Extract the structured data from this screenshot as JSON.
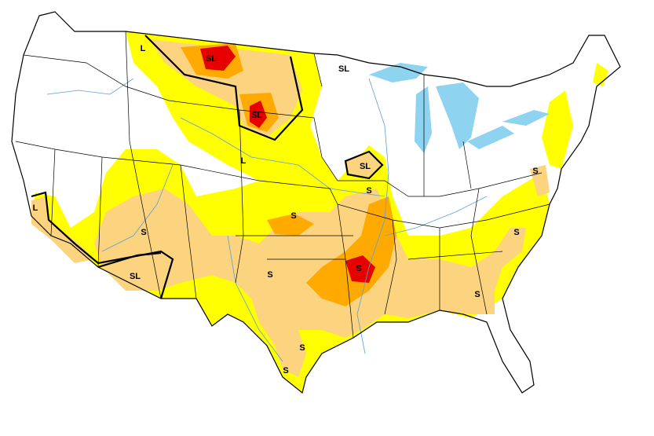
{
  "labels": [
    "L",
    "SL",
    "SL",
    "SL",
    "L",
    "SL",
    "S",
    "S",
    "L",
    "S",
    "S",
    "S",
    "SL",
    "S",
    "S",
    "S",
    "S",
    "S"
  ]
}
